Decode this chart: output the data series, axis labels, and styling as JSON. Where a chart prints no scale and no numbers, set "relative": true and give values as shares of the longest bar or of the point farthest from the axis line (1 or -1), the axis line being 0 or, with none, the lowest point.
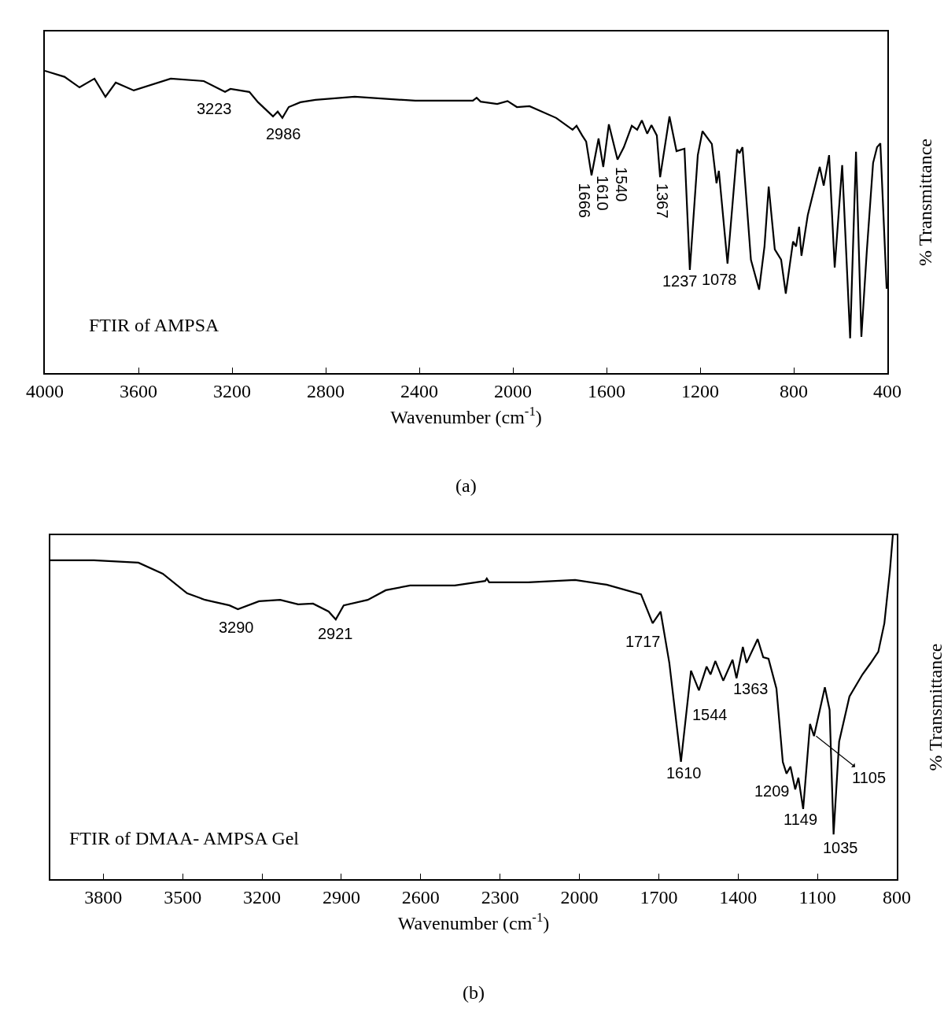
{
  "chart_data": [
    {
      "type": "line",
      "relative": true,
      "xlabel": "Wavenumber (cm$^{-1}$)",
      "ylabel": "% Transmittance",
      "xlim": [
        4000,
        400
      ],
      "xticks": [
        4000,
        3600,
        3200,
        2800,
        2400,
        2000,
        1600,
        1200,
        800,
        400
      ],
      "x": [
        4000,
        3916,
        3852,
        3788,
        3741,
        3697,
        3620,
        3462,
        3321,
        3230,
        3207,
        3126,
        3089,
        3025,
        3005,
        2985,
        2958,
        2908,
        2844,
        2676,
        2417,
        2171,
        2155,
        2138,
        2067,
        2023,
        1983,
        1929,
        1815,
        1745,
        1728,
        1704,
        1687,
        1664,
        1634,
        1614,
        1590,
        1553,
        1526,
        1492,
        1469,
        1449,
        1426,
        1408,
        1385,
        1371,
        1331,
        1301,
        1267,
        1244,
        1210,
        1190,
        1150,
        1130,
        1120,
        1083,
        1042,
        1032,
        1019,
        983,
        948,
        925,
        907,
        881,
        854,
        834,
        803,
        790,
        777,
        767,
        740,
        689,
        672,
        649,
        625,
        593,
        559,
        534,
        511,
        488,
        461,
        444,
        430,
        403
      ],
      "series": [
        {
          "color": "#000000",
          "values": [
            1.0,
            0.98,
            0.945,
            0.974,
            0.914,
            0.961,
            0.935,
            0.974,
            0.966,
            0.93,
            0.94,
            0.93,
            0.896,
            0.849,
            0.865,
            0.844,
            0.88,
            0.896,
            0.904,
            0.914,
            0.901,
            0.901,
            0.911,
            0.898,
            0.89,
            0.9,
            0.88,
            0.883,
            0.844,
            0.805,
            0.818,
            0.786,
            0.766,
            0.654,
            0.776,
            0.682,
            0.823,
            0.706,
            0.747,
            0.818,
            0.805,
            0.836,
            0.792,
            0.82,
            0.786,
            0.648,
            0.849,
            0.734,
            0.742,
            0.341,
            0.721,
            0.8,
            0.758,
            0.628,
            0.669,
            0.362,
            0.74,
            0.727,
            0.747,
            0.375,
            0.276,
            0.419,
            0.617,
            0.409,
            0.375,
            0.263,
            0.435,
            0.419,
            0.484,
            0.388,
            0.523,
            0.682,
            0.62,
            0.721,
            0.349,
            0.688,
            0.115,
            0.732,
            0.12,
            0.401,
            0.695,
            0.747,
            0.76,
            0.279
          ]
        }
      ],
      "annotations": [
        {
          "text": "3223",
          "x": 3223,
          "y": 0.93
        },
        {
          "text": "2986",
          "x": 2986,
          "y": 0.844
        },
        {
          "text": "1666",
          "x": 1666,
          "y": 0.654
        },
        {
          "text": "1610",
          "x": 1610,
          "y": 0.682
        },
        {
          "text": "1540",
          "x": 1540,
          "y": 0.706
        },
        {
          "text": "1367",
          "x": 1367,
          "y": 0.648
        },
        {
          "text": "1237",
          "x": 1237,
          "y": 0.341
        },
        {
          "text": "1078",
          "x": 1078,
          "y": 0.362
        },
        "FTIR of AMPSA",
        "(a)"
      ]
    },
    {
      "type": "line",
      "relative": true,
      "xlabel": "Wavenumber (cm$^{-1}$)",
      "ylabel": "% Transmittance",
      "xlim": [
        4000,
        800
      ],
      "xticks": [
        3800,
        3500,
        3200,
        2900,
        2600,
        2300,
        2000,
        1700,
        1400,
        1100,
        800
      ],
      "x": [
        4000,
        3835,
        3667,
        3575,
        3483,
        3415,
        3323,
        3291,
        3211,
        3131,
        3063,
        3007,
        2948,
        2921,
        2891,
        2800,
        2732,
        2640,
        2471,
        2356,
        2350,
        2341,
        2232,
        2193,
        2016,
        1897,
        1767,
        1723,
        1693,
        1660,
        1616,
        1578,
        1548,
        1519,
        1504,
        1486,
        1456,
        1421,
        1406,
        1382,
        1368,
        1326,
        1305,
        1285,
        1255,
        1231,
        1217,
        1202,
        1184,
        1172,
        1154,
        1128,
        1113,
        1072,
        1054,
        1039,
        1018,
        979,
        930,
        900,
        870,
        847,
        826,
        815
      ],
      "series": [
        {
          "color": "#000000",
          "values": [
            0.927,
            0.927,
            0.92,
            0.888,
            0.831,
            0.812,
            0.796,
            0.785,
            0.808,
            0.812,
            0.799,
            0.801,
            0.778,
            0.755,
            0.796,
            0.812,
            0.84,
            0.854,
            0.854,
            0.867,
            0.874,
            0.863,
            0.863,
            0.863,
            0.87,
            0.856,
            0.828,
            0.744,
            0.778,
            0.629,
            0.341,
            0.606,
            0.549,
            0.618,
            0.595,
            0.634,
            0.577,
            0.638,
            0.584,
            0.675,
            0.629,
            0.698,
            0.645,
            0.641,
            0.554,
            0.341,
            0.307,
            0.327,
            0.261,
            0.295,
            0.204,
            0.451,
            0.416,
            0.558,
            0.492,
            0.13,
            0.4,
            0.531,
            0.595,
            0.627,
            0.661,
            0.744,
            0.897,
            1.0
          ]
        }
      ],
      "annotations": [
        {
          "text": "3290",
          "x": 3290,
          "y": 0.785
        },
        {
          "text": "2921",
          "x": 2921,
          "y": 0.755
        },
        {
          "text": "1717",
          "x": 1717,
          "y": 0.744
        },
        {
          "text": "1610",
          "x": 1610,
          "y": 0.341
        },
        {
          "text": "1544",
          "x": 1544,
          "y": 0.549
        },
        {
          "text": "1363",
          "x": 1363,
          "y": 0.629
        },
        {
          "text": "1209",
          "x": 1209,
          "y": 0.307
        },
        {
          "text": "1149",
          "x": 1149,
          "y": 0.204
        },
        {
          "text": "1105",
          "x": 1105,
          "y": 0.416
        },
        {
          "text": "1035",
          "x": 1035,
          "y": 0.13
        },
        "FTIR of DMAA- AMPSA Gel",
        "(b)"
      ]
    }
  ]
}
